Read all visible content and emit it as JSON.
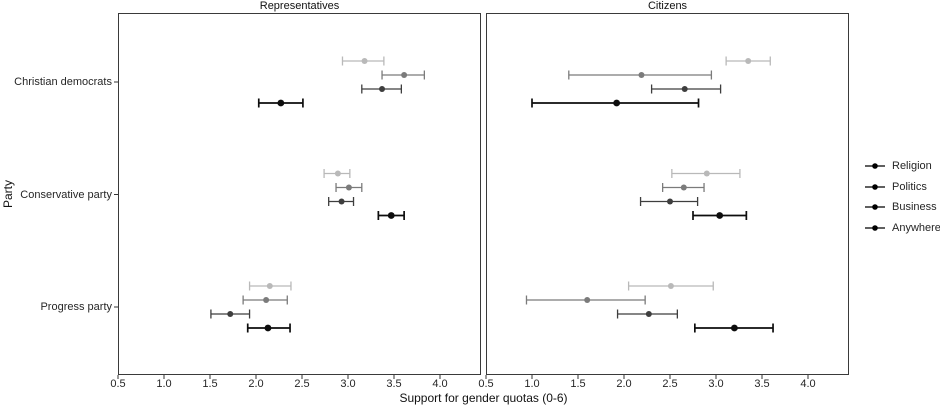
{
  "chart_data": {
    "type": "dot-whisker",
    "title": "",
    "facets": [
      "Representatives",
      "Citizens"
    ],
    "categories": [
      "Christian democrats",
      "Conservative party",
      "Progress party"
    ],
    "xlabel": "Support for gender quotas (0-6)",
    "ylabel": "Party",
    "x_ticks": [
      "0.5",
      "1.0",
      "1.5",
      "2.0",
      "2.5",
      "3.0",
      "3.5",
      "4.0"
    ],
    "x_range": [
      0.5,
      4.45
    ],
    "grid": false,
    "legend_position": "right",
    "draw_order_top_to_bottom": [
      "Anywhere",
      "Business",
      "Politics",
      "Religion"
    ],
    "series": [
      {
        "name": "Religion",
        "color": "#0d0d0d"
      },
      {
        "name": "Politics",
        "color": "#3e3e3e"
      },
      {
        "name": "Business",
        "color": "#7b7b7b"
      },
      {
        "name": "Anywhere",
        "color": "#b9b9b9"
      }
    ],
    "points": [
      {
        "facet": "Representatives",
        "party": "Christian democrats",
        "group": "Anywhere",
        "est": 3.18,
        "lo": 2.94,
        "hi": 3.39
      },
      {
        "facet": "Representatives",
        "party": "Christian democrats",
        "group": "Business",
        "est": 3.61,
        "lo": 3.37,
        "hi": 3.83
      },
      {
        "facet": "Representatives",
        "party": "Christian democrats",
        "group": "Politics",
        "est": 3.37,
        "lo": 3.15,
        "hi": 3.58
      },
      {
        "facet": "Representatives",
        "party": "Christian democrats",
        "group": "Religion",
        "est": 2.27,
        "lo": 2.03,
        "hi": 2.51
      },
      {
        "facet": "Representatives",
        "party": "Conservative party",
        "group": "Anywhere",
        "est": 2.89,
        "lo": 2.74,
        "hi": 3.02
      },
      {
        "facet": "Representatives",
        "party": "Conservative party",
        "group": "Business",
        "est": 3.01,
        "lo": 2.87,
        "hi": 3.15
      },
      {
        "facet": "Representatives",
        "party": "Conservative party",
        "group": "Politics",
        "est": 2.93,
        "lo": 2.79,
        "hi": 3.06
      },
      {
        "facet": "Representatives",
        "party": "Conservative party",
        "group": "Religion",
        "est": 3.47,
        "lo": 3.33,
        "hi": 3.61
      },
      {
        "facet": "Representatives",
        "party": "Progress party",
        "group": "Anywhere",
        "est": 2.15,
        "lo": 1.93,
        "hi": 2.38
      },
      {
        "facet": "Representatives",
        "party": "Progress party",
        "group": "Business",
        "est": 2.11,
        "lo": 1.86,
        "hi": 2.34
      },
      {
        "facet": "Representatives",
        "party": "Progress party",
        "group": "Politics",
        "est": 1.72,
        "lo": 1.51,
        "hi": 1.93
      },
      {
        "facet": "Representatives",
        "party": "Progress party",
        "group": "Religion",
        "est": 2.13,
        "lo": 1.91,
        "hi": 2.37
      },
      {
        "facet": "Citizens",
        "party": "Christian democrats",
        "group": "Anywhere",
        "est": 3.35,
        "lo": 3.11,
        "hi": 3.59
      },
      {
        "facet": "Citizens",
        "party": "Christian democrats",
        "group": "Business",
        "est": 2.19,
        "lo": 1.4,
        "hi": 2.95
      },
      {
        "facet": "Citizens",
        "party": "Christian democrats",
        "group": "Politics",
        "est": 2.66,
        "lo": 2.3,
        "hi": 3.05
      },
      {
        "facet": "Citizens",
        "party": "Christian democrats",
        "group": "Religion",
        "est": 1.92,
        "lo": 1.0,
        "hi": 2.81
      },
      {
        "facet": "Citizens",
        "party": "Conservative party",
        "group": "Anywhere",
        "est": 2.9,
        "lo": 2.52,
        "hi": 3.26
      },
      {
        "facet": "Citizens",
        "party": "Conservative party",
        "group": "Business",
        "est": 2.65,
        "lo": 2.42,
        "hi": 2.87
      },
      {
        "facet": "Citizens",
        "party": "Conservative party",
        "group": "Politics",
        "est": 2.5,
        "lo": 2.18,
        "hi": 2.8
      },
      {
        "facet": "Citizens",
        "party": "Conservative party",
        "group": "Religion",
        "est": 3.04,
        "lo": 2.75,
        "hi": 3.33
      },
      {
        "facet": "Citizens",
        "party": "Progress party",
        "group": "Anywhere",
        "est": 2.51,
        "lo": 2.05,
        "hi": 2.97
      },
      {
        "facet": "Citizens",
        "party": "Progress party",
        "group": "Business",
        "est": 1.6,
        "lo": 0.94,
        "hi": 2.23
      },
      {
        "facet": "Citizens",
        "party": "Progress party",
        "group": "Politics",
        "est": 2.27,
        "lo": 1.93,
        "hi": 2.58
      },
      {
        "facet": "Citizens",
        "party": "Progress party",
        "group": "Religion",
        "est": 3.2,
        "lo": 2.77,
        "hi": 3.62
      }
    ]
  }
}
